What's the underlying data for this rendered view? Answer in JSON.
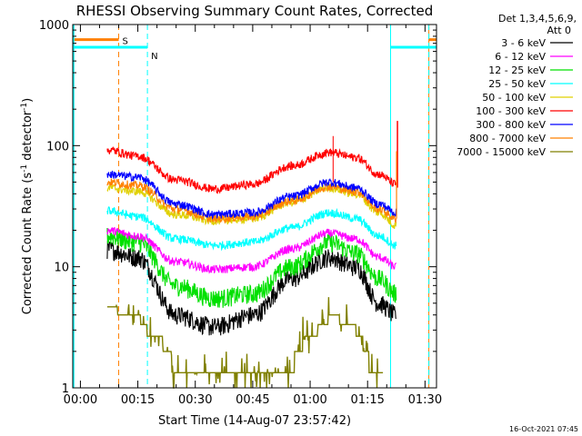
{
  "chart_data": {
    "type": "line",
    "title": "RHESSI Observing Summary Count Rates, Corrected",
    "xlabel": "Start Time (14-Aug-07 23:57:42)",
    "ylabel_main": "Corrected Count Rate (s",
    "ylabel_sup1": "-1",
    "ylabel_mid": " detector",
    "ylabel_sup2": "-1",
    "ylabel_end": ")",
    "y_scale": "log",
    "ylim": [
      1,
      1000
    ],
    "xlim_minutes": [
      -2,
      93
    ],
    "x_tick_labels": [
      "00:00",
      "00:15",
      "00:30",
      "00:45",
      "01:00",
      "01:15",
      "01:30"
    ],
    "x_tick_minutes": [
      0,
      15,
      30,
      45,
      60,
      75,
      90
    ],
    "y_tick_labels": [
      "1",
      "10",
      "100",
      "1000"
    ],
    "y_tick_values": [
      1,
      10,
      100,
      1000
    ],
    "legend": {
      "placement": "right, outside plot",
      "header": [
        "Det 1,3,4,5,6,9,",
        "Att 0"
      ]
    },
    "series": [
      {
        "name": "3 - 6 keV",
        "color": "#000000",
        "x": [
          7,
          15,
          25,
          35,
          45,
          55,
          65,
          72,
          78,
          82.5
        ],
        "y": [
          14,
          12,
          4,
          3.2,
          4,
          8,
          12,
          10,
          5,
          4
        ]
      },
      {
        "name": "6 - 12 keV",
        "color": "#ff00ff",
        "x": [
          7,
          15,
          25,
          35,
          45,
          55,
          65,
          72,
          78,
          82.5
        ],
        "y": [
          20,
          18,
          11,
          9.5,
          10,
          14,
          19,
          17,
          12,
          10
        ]
      },
      {
        "name": "12 - 25 keV",
        "color": "#00e000",
        "x": [
          7,
          15,
          25,
          35,
          45,
          55,
          65,
          72,
          78,
          82.5
        ],
        "y": [
          18,
          16,
          7,
          5.5,
          6,
          10,
          16,
          13,
          8,
          6
        ]
      },
      {
        "name": "25 - 50 keV",
        "color": "#00ffff",
        "x": [
          7,
          15,
          25,
          35,
          45,
          55,
          65,
          72,
          78,
          82.5
        ],
        "y": [
          29,
          26,
          17,
          15,
          16,
          21,
          28,
          25,
          18,
          15
        ]
      },
      {
        "name": "50 - 100 keV",
        "color": "#e0d000",
        "x": [
          7,
          15,
          25,
          35,
          45,
          55,
          65,
          72,
          78,
          82.5
        ],
        "y": [
          45,
          42,
          27,
          24,
          25,
          34,
          45,
          40,
          28,
          22
        ]
      },
      {
        "name": "100 - 300 keV",
        "color": "#ff0000",
        "x": [
          7,
          15,
          25,
          35,
          45,
          55,
          65,
          72,
          78,
          82.5
        ],
        "y": [
          92,
          82,
          52,
          44,
          48,
          68,
          88,
          80,
          58,
          48
        ]
      },
      {
        "name": "300 - 800 keV",
        "color": "#0000ff",
        "x": [
          7,
          15,
          25,
          35,
          45,
          55,
          65,
          72,
          78,
          82.5
        ],
        "y": [
          58,
          55,
          33,
          27,
          28,
          38,
          50,
          45,
          33,
          28
        ]
      },
      {
        "name": "800 - 7000 keV",
        "color": "#ff8000",
        "x": [
          7,
          15,
          25,
          35,
          45,
          55,
          65,
          72,
          78,
          82.5
        ],
        "y": [
          50,
          47,
          30,
          25,
          26,
          35,
          46,
          42,
          30,
          25
        ]
      },
      {
        "name": "7000 - 15000 keV",
        "color": "#808000",
        "x": [
          7,
          14,
          20,
          28,
          38,
          48,
          55,
          60,
          66,
          72,
          76,
          79
        ],
        "y": [
          4.5,
          4,
          2.5,
          1,
          1,
          1,
          1.6,
          2.8,
          3.8,
          3,
          1.6,
          1
        ]
      }
    ],
    "flags": [
      {
        "label": "S",
        "color": "#ff8000",
        "start": -2,
        "end": 10,
        "level": 750,
        "dashed_at": [
          10,
          91
        ],
        "bar_resume": [
          91,
          93
        ]
      },
      {
        "label": "N",
        "color": "#00ffff",
        "start": -2,
        "end": 17.5,
        "level": 650,
        "dashed_at": [
          17.5,
          91
        ],
        "bar_resume": [
          81,
          93
        ]
      }
    ]
  },
  "timestamp": "16-Oct-2021 07:45"
}
